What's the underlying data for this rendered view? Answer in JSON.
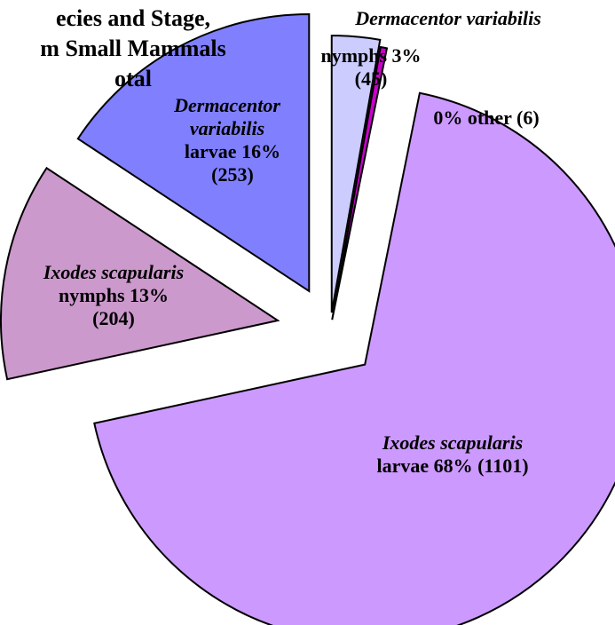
{
  "chart_data": {
    "type": "pie",
    "title": [
      "ecies and Stage,",
      "m Small Mammals",
      "otal"
    ],
    "species": [
      "Dermacentor variabilis",
      null,
      "Ixodes scapularis",
      "Ixodes scapularis",
      "Dermacentor variabilis"
    ],
    "values": [
      45,
      6,
      1101,
      204,
      253
    ],
    "value_labels": [
      "nymphs 3% (45)",
      "0% other (6)",
      "larvae 68% (1101)",
      "nymphs 13% (204)",
      "larvae 16% (253)"
    ],
    "colors": [
      "#ccccff",
      "#cc00cc",
      "#cc99ff",
      "#cc99cc",
      "#8080ff"
    ]
  }
}
